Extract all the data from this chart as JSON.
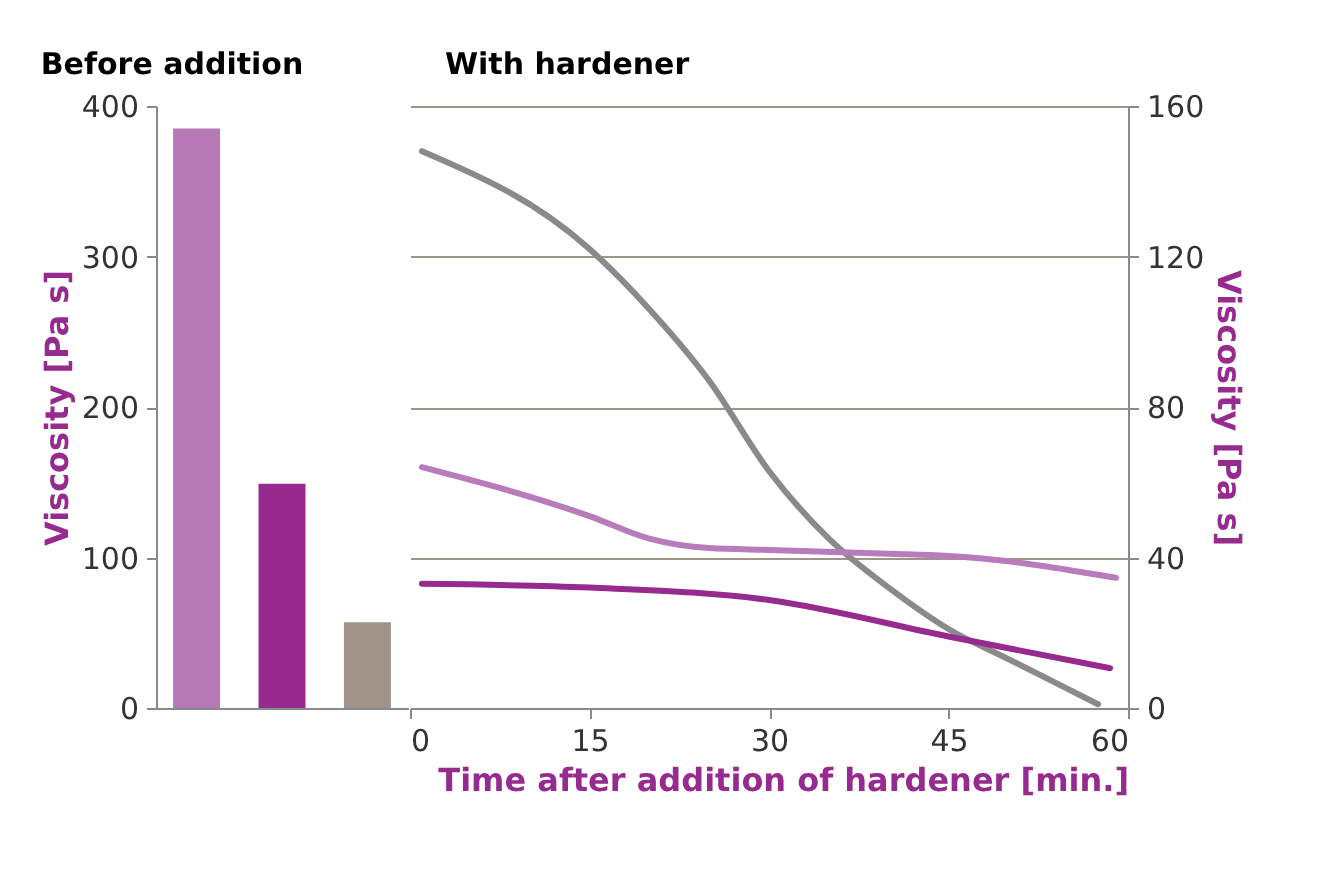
{
  "chart_data": [
    {
      "type": "bar",
      "title": "Before addition",
      "categories": [
        null,
        null,
        null
      ],
      "values": [
        385,
        149,
        57
      ],
      "colors": [
        "#b57ab5",
        "#962a8f",
        "#a09488"
      ],
      "ylim": [
        0,
        400
      ],
      "yticks": [
        0,
        100,
        200,
        300,
        400
      ],
      "ylabel": "Viscosity [Pa s]",
      "tick_labels": "y",
      "grid": false
    },
    {
      "type": "line",
      "title": "With hardener",
      "xlabel": "Time after addition of hardener [min.]",
      "y2label": "Viscosity [Pa s]",
      "xlim": [
        0,
        60
      ],
      "xticks": [
        0,
        15,
        30,
        45,
        60
      ],
      "y2lim": [
        0,
        160
      ],
      "y2ticks": [
        0,
        40,
        80,
        120,
        160
      ],
      "grid": "y",
      "series": [
        {
          "color": "#8a8a8a",
          "axis": "y2",
          "x": [
            1,
            15,
            20,
            25,
            30,
            35,
            40,
            45,
            50,
            55,
            57.5
          ],
          "values": [
            148,
            122,
            106,
            87,
            63,
            45,
            32,
            21,
            13,
            5,
            1
          ]
        },
        {
          "color": "#b87bbb",
          "axis": "y2",
          "x": [
            1,
            15,
            20,
            25,
            30,
            40,
            45,
            50,
            55,
            59
          ],
          "values": [
            64,
            51,
            45,
            42.5,
            42,
            41,
            40.4,
            39,
            36.7,
            34.6
          ]
        },
        {
          "color": "#962a8f",
          "axis": "y2",
          "x": [
            1,
            15,
            30,
            45,
            58.5
          ],
          "values": [
            33,
            32,
            28.7,
            19,
            10.6
          ]
        }
      ]
    }
  ]
}
